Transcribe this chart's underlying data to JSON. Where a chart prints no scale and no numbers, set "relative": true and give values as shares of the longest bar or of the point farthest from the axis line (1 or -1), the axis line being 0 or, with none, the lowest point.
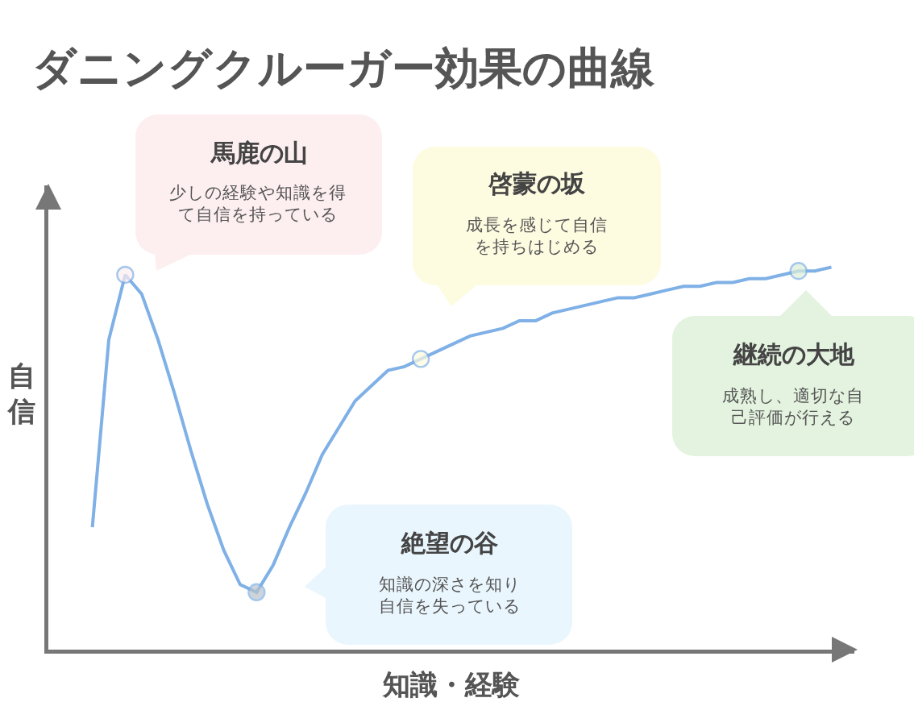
{
  "chart_data": {
    "type": "line",
    "title": "ダニングクルーガー効果の曲線",
    "xlabel": "知識・経験",
    "ylabel": "自信",
    "relative": true,
    "categories": [
      null,
      null,
      null,
      null,
      null,
      null,
      null,
      null,
      null,
      null,
      null,
      null,
      null,
      null,
      null,
      null,
      null,
      null,
      null,
      null,
      null,
      null,
      null,
      null,
      null,
      null,
      null,
      null,
      null,
      null,
      null,
      null,
      null,
      null,
      null,
      null,
      null,
      null,
      null,
      null,
      null,
      null,
      null,
      null,
      null,
      null
    ],
    "series": [
      {
        "color": "#7fb0e6",
        "values": [
          0.32,
          0.81,
          0.98,
          0.93,
          0.81,
          0.67,
          0.52,
          0.38,
          0.26,
          0.17,
          0.15,
          0.22,
          0.32,
          0.41,
          0.51,
          0.58,
          0.65,
          0.69,
          0.73,
          0.74,
          0.76,
          0.78,
          0.8,
          0.82,
          0.83,
          0.84,
          0.86,
          0.86,
          0.88,
          0.89,
          0.9,
          0.91,
          0.92,
          0.92,
          0.93,
          0.94,
          0.95,
          0.95,
          0.96,
          0.96,
          0.97,
          0.97,
          0.98,
          0.99,
          0.99,
          1
        ],
        "colors": [
          null,
          null,
          "#fdeef0",
          null,
          null,
          null,
          null,
          null,
          null,
          null,
          "#b9c2cc",
          null,
          null,
          null,
          null,
          null,
          null,
          null,
          null,
          null,
          "#fdfbe0",
          null,
          null,
          null,
          null,
          null,
          null,
          null,
          null,
          null,
          null,
          null,
          null,
          null,
          null,
          null,
          null,
          null,
          null,
          null,
          null,
          null,
          null,
          "#dcefd8",
          null,
          null
        ]
      }
    ],
    "annotations": [
      "馬鹿の山",
      "少しの経験や知識を得て自信を持っている",
      "啓蒙の坂",
      "成長を感じて自信を持ちはじめる",
      "絶望の谷",
      "知識の深さを知り自信を失っている",
      "継続の大地",
      "成熟し、適切な自己評価が行える"
    ]
  }
}
